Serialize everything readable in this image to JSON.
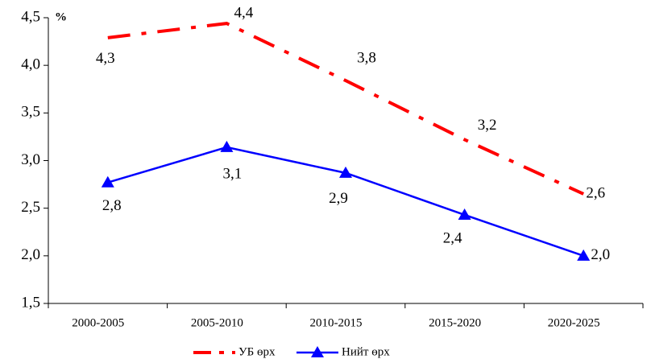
{
  "chart_data": {
    "type": "line",
    "y_unit_label": "%",
    "categories": [
      "2000-2005",
      "2005-2010",
      "2010-2015",
      "2015-2020",
      "2020-2025"
    ],
    "series": [
      {
        "name": "УБ өрх",
        "color": "#ff0000",
        "line_style": "dash-dot",
        "values": [
          4.29,
          4.44,
          3.84,
          3.22,
          2.65
        ],
        "value_labels": [
          "4,3",
          "4,4",
          "3,8",
          "3,2",
          "2,6"
        ]
      },
      {
        "name": "Нийт өрх",
        "color": "#0000ff",
        "line_style": "solid",
        "marker": "triangle",
        "values": [
          2.77,
          3.14,
          2.87,
          2.43,
          2.0
        ],
        "value_labels": [
          "2,8",
          "3,1",
          "2,9",
          "2,4",
          "2,0"
        ]
      }
    ],
    "ylim": [
      1.5,
      4.5
    ],
    "yticks": [
      {
        "value": 1.5,
        "label": "1,5"
      },
      {
        "value": 2.0,
        "label": "2,0"
      },
      {
        "value": 2.5,
        "label": "2,5"
      },
      {
        "value": 3.0,
        "label": "3,0"
      },
      {
        "value": 3.5,
        "label": "3,5"
      },
      {
        "value": 4.0,
        "label": "4,0"
      },
      {
        "value": 4.5,
        "label": "4,5"
      }
    ],
    "legend_position": "bottom"
  }
}
